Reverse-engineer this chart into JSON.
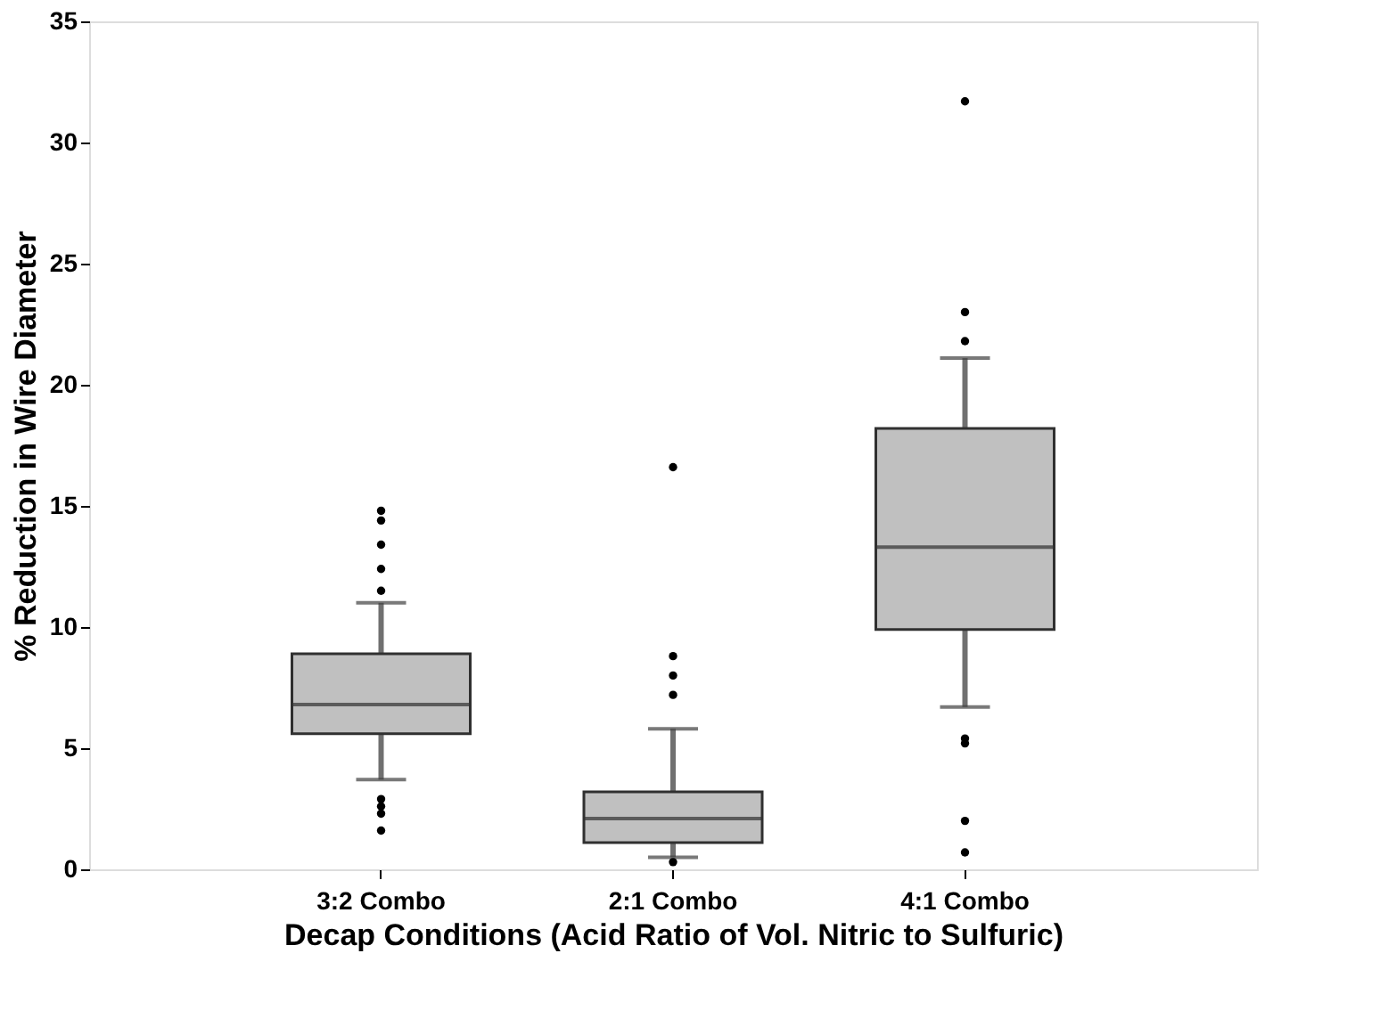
{
  "chart_data": {
    "type": "box",
    "xlabel": "Decap Conditions (Acid Ratio of Vol. Nitric to Sulfuric)",
    "ylabel": "% Reduction in Wire Diameter",
    "categories": [
      "3:2 Combo",
      "2:1 Combo",
      "4:1 Combo"
    ],
    "boxes": [
      {
        "low": 3.7,
        "q1": 5.6,
        "median": 6.8,
        "q3": 8.9,
        "high": 11.0,
        "outliers": [
          14.8,
          14.4,
          13.4,
          12.4,
          11.5,
          2.9,
          2.6,
          2.3,
          1.6
        ]
      },
      {
        "low": 0.5,
        "q1": 1.1,
        "median": 2.1,
        "q3": 3.2,
        "high": 5.8,
        "outliers": [
          16.6,
          8.8,
          8.0,
          7.2,
          0.3
        ]
      },
      {
        "low": 6.7,
        "q1": 9.9,
        "median": 13.3,
        "q3": 18.2,
        "high": 21.1,
        "outliers": [
          31.7,
          23.0,
          21.8,
          5.4,
          5.2,
          2.0,
          0.7
        ]
      }
    ],
    "color": "#c0c0c0",
    "ylim": [
      0,
      35
    ],
    "yticks": [
      0,
      5,
      10,
      15,
      20,
      25,
      30,
      35
    ],
    "grid": false
  }
}
